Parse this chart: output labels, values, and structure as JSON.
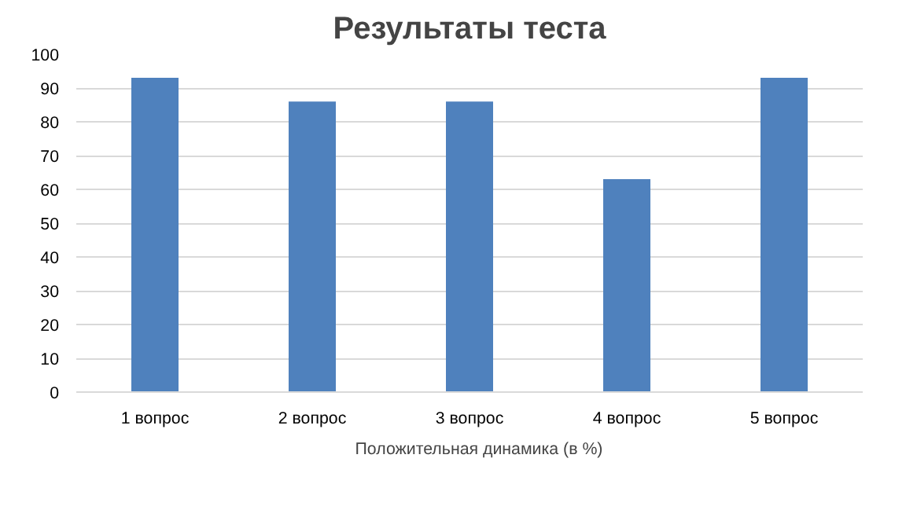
{
  "chart_data": {
    "type": "bar",
    "title": "Результаты теста",
    "categories": [
      "1 вопрос",
      "2 вопрос",
      "3 вопрос",
      "4 вопрос",
      "5 вопрос"
    ],
    "series": [
      {
        "name": "Положительная динамика (в %)",
        "color": "#4f81bd",
        "values": [
          93,
          86,
          86,
          63,
          93
        ]
      }
    ],
    "ylim": [
      0,
      100
    ],
    "yticks": [
      0,
      10,
      20,
      30,
      40,
      50,
      60,
      70,
      80,
      90,
      100
    ],
    "grid": "y",
    "legend": "bottom"
  }
}
